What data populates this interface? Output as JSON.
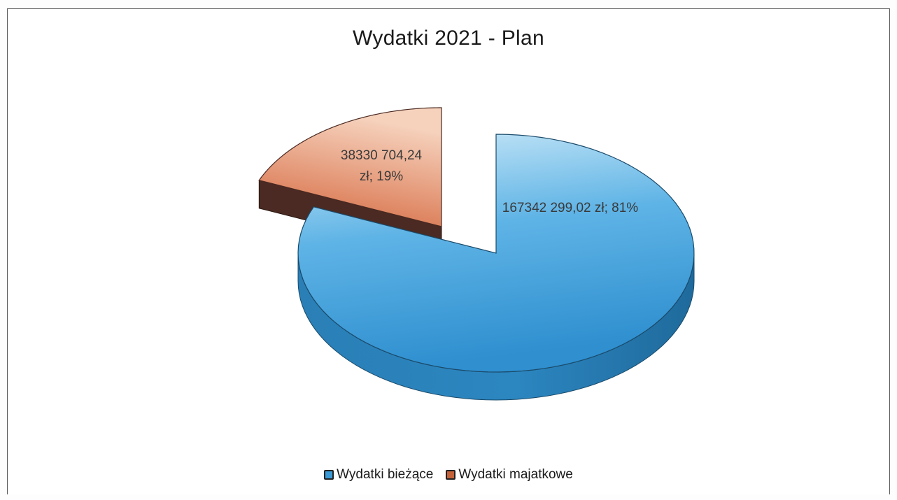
{
  "chart_data": {
    "type": "pie",
    "title": "Wydatki 2021 - Plan",
    "categories": [
      "Wydatki bieżące",
      "Wydatki majatkowe"
    ],
    "values": [
      167342299.02,
      38330704.24
    ],
    "percentages": [
      81,
      19
    ],
    "data_labels": [
      [
        "167342 299,02 zł; 81%"
      ],
      [
        "38330 704,24",
        "zł; 19%"
      ]
    ],
    "legend": {
      "position": "bottom",
      "entries": [
        "Wydatki bieżące",
        "Wydatki majatkowe"
      ]
    },
    "colors": {
      "series_1_top": "#3a9ad6",
      "series_1_light": "#cfeaf8",
      "series_1_side": "#1f6fa3",
      "series_2_top": "#d4643a",
      "series_2_light": "#f6d2bd",
      "series_2_side": "#4a2a22"
    },
    "style": "3d-exploded"
  }
}
